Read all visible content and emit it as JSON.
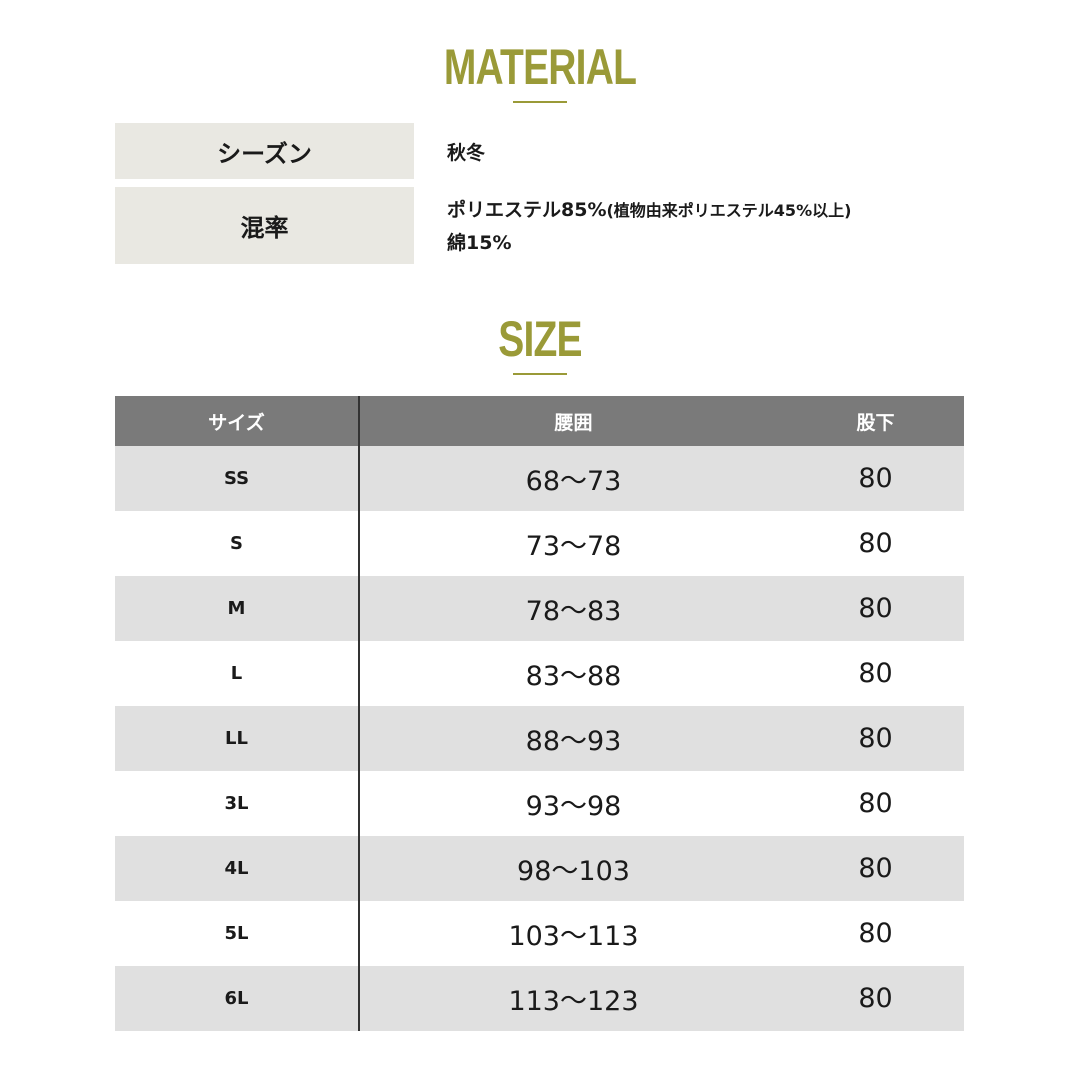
{
  "material": {
    "title": "MATERIAL",
    "rows": [
      {
        "label": "シーズン",
        "value": "秋冬"
      },
      {
        "label": "混率",
        "value_line1": "ポリエステル85%",
        "value_note": "(植物由来ポリエステル45%以上)",
        "value_line2": "綿15%"
      }
    ]
  },
  "size": {
    "title": "SIZE",
    "headers": [
      "サイズ",
      "腰囲",
      "股下"
    ],
    "rows": [
      [
        "SS",
        "68～73",
        "80"
      ],
      [
        "S",
        "73～78",
        "80"
      ],
      [
        "M",
        "78～83",
        "80"
      ],
      [
        "L",
        "83～88",
        "80"
      ],
      [
        "LL",
        "88～93",
        "80"
      ],
      [
        "3L",
        "93～98",
        "80"
      ],
      [
        "4L",
        "98～103",
        "80"
      ],
      [
        "5L",
        "103～113",
        "80"
      ],
      [
        "6L",
        "113～123",
        "80"
      ]
    ]
  },
  "colors": {
    "accent": "#9a9a38",
    "header_bg": "#7a7a7a",
    "row_alt": "#e0e0e0",
    "label_bg": "#e9e8e2"
  }
}
